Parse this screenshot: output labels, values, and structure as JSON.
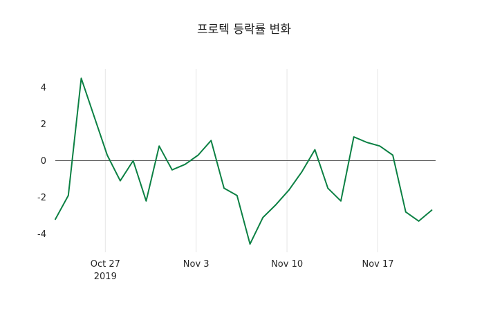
{
  "chart_data": {
    "type": "line",
    "title": "프로텍 등락률 변화",
    "series": [
      {
        "points": [
          [
            0,
            -3.2
          ],
          [
            1,
            -1.9
          ],
          [
            2,
            4.5
          ],
          [
            3,
            2.4
          ],
          [
            4,
            0.3
          ],
          [
            5,
            -1.1
          ],
          [
            6,
            0.0
          ],
          [
            7,
            -2.2
          ],
          [
            8,
            0.8
          ],
          [
            9,
            -0.5
          ],
          [
            10,
            -0.2
          ],
          [
            11,
            0.3
          ],
          [
            12,
            1.1
          ],
          [
            13,
            -1.5
          ],
          [
            14,
            -1.9
          ],
          [
            15,
            -4.55
          ],
          [
            16,
            -3.1
          ],
          [
            17,
            -2.4
          ],
          [
            18,
            -1.6
          ],
          [
            19,
            -0.6
          ],
          [
            20,
            0.6
          ],
          [
            21,
            -1.5
          ],
          [
            22,
            -2.2
          ],
          [
            23,
            1.3
          ],
          [
            24,
            1.0
          ],
          [
            25,
            0.8
          ],
          [
            26,
            0.3
          ],
          [
            27,
            -2.8
          ],
          [
            28,
            -3.3
          ],
          [
            29,
            -2.7
          ]
        ]
      }
    ],
    "xlim": [
      0,
      29.3
    ],
    "ylim": [
      -5,
      5
    ],
    "x_ticks": [
      {
        "x": 3.85,
        "label": "Oct 27",
        "sublabel": "2019"
      },
      {
        "x": 10.85,
        "label": "Nov 3"
      },
      {
        "x": 17.85,
        "label": "Nov 10"
      },
      {
        "x": 24.85,
        "label": "Nov 17"
      }
    ],
    "y_ticks": [
      4,
      2,
      0,
      -2,
      -4
    ],
    "grid": "vertical-only",
    "zero_line": true,
    "legend": "none",
    "line_width": 2,
    "colors": {
      "line": "#0b8043",
      "grid": "#e5e5e5",
      "zero_line": "#4d4d4d",
      "text": "#262626",
      "background": "#ffffff"
    }
  }
}
